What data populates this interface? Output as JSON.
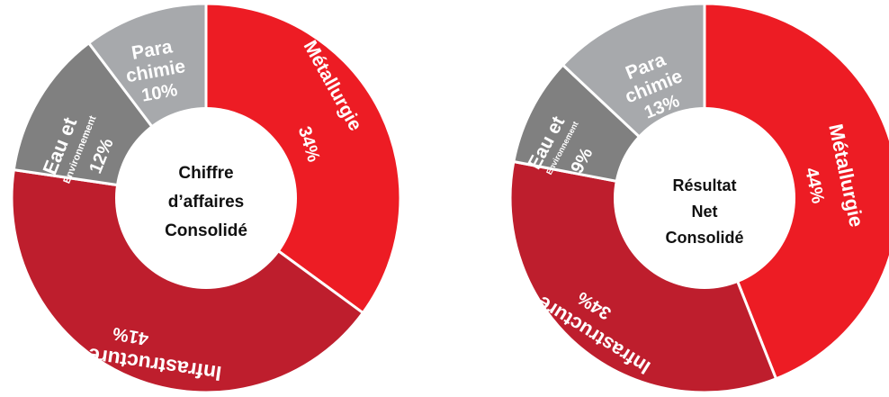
{
  "chart_data": [
    {
      "type": "pie",
      "center_label": [
        "Chiffre",
        "d’affaires",
        "Consolidé"
      ],
      "slices": [
        {
          "category": "Métallurgie",
          "value": 34,
          "value_label": "34%",
          "color": "#ed1c24"
        },
        {
          "category": "Infrastructure",
          "value": 41,
          "value_label": "41%",
          "color": "#be1e2d"
        },
        {
          "category": "Eau et Environnement",
          "line1": "Eau et",
          "line2": "Environnement",
          "value": 12,
          "value_label": "12%",
          "color": "#808080"
        },
        {
          "category": "Para chimie",
          "line1": "Para",
          "line2": "chimie",
          "value": 10,
          "value_label": "10%",
          "color": "#a7a9ac"
        }
      ]
    },
    {
      "type": "pie",
      "center_label": [
        "Résultat",
        "Net",
        "Consolidé"
      ],
      "slices": [
        {
          "category": "Métallurgie",
          "value": 44,
          "value_label": "44%",
          "color": "#ed1c24"
        },
        {
          "category": "Infrastructure",
          "value": 34,
          "value_label": "34%",
          "color": "#be1e2d"
        },
        {
          "category": "Eau et Environnement",
          "line1": "Eau et",
          "line2": "Environnement",
          "value": 9,
          "value_label": "9%",
          "color": "#808080"
        },
        {
          "category": "Para chimie",
          "line1": "Para",
          "line2": "chimie",
          "value": 13,
          "value_label": "13%",
          "color": "#a7a9ac"
        }
      ]
    }
  ]
}
